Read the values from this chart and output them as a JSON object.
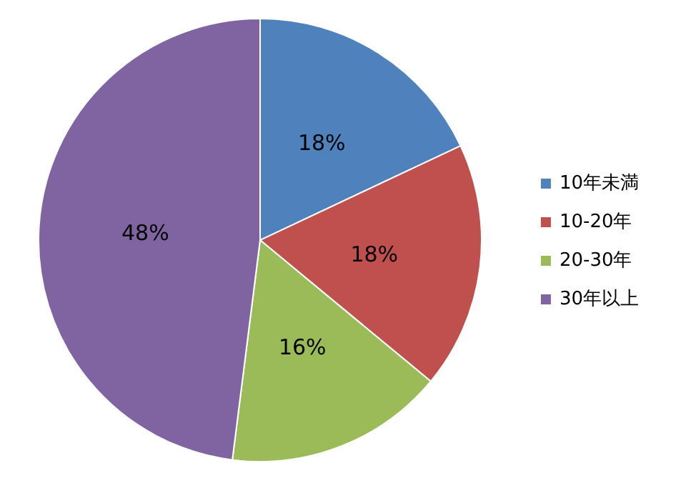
{
  "chart_data": {
    "type": "pie",
    "categories": [
      "10年未満",
      "10-20年",
      "20-30年",
      "30年以上"
    ],
    "values": [
      18,
      18,
      16,
      48
    ],
    "colors": [
      "#4f81bd",
      "#c0504d",
      "#9bbb59",
      "#8064a2"
    ],
    "value_labels": [
      "18%",
      "18%",
      "16%",
      "48%"
    ],
    "legend": "right"
  }
}
